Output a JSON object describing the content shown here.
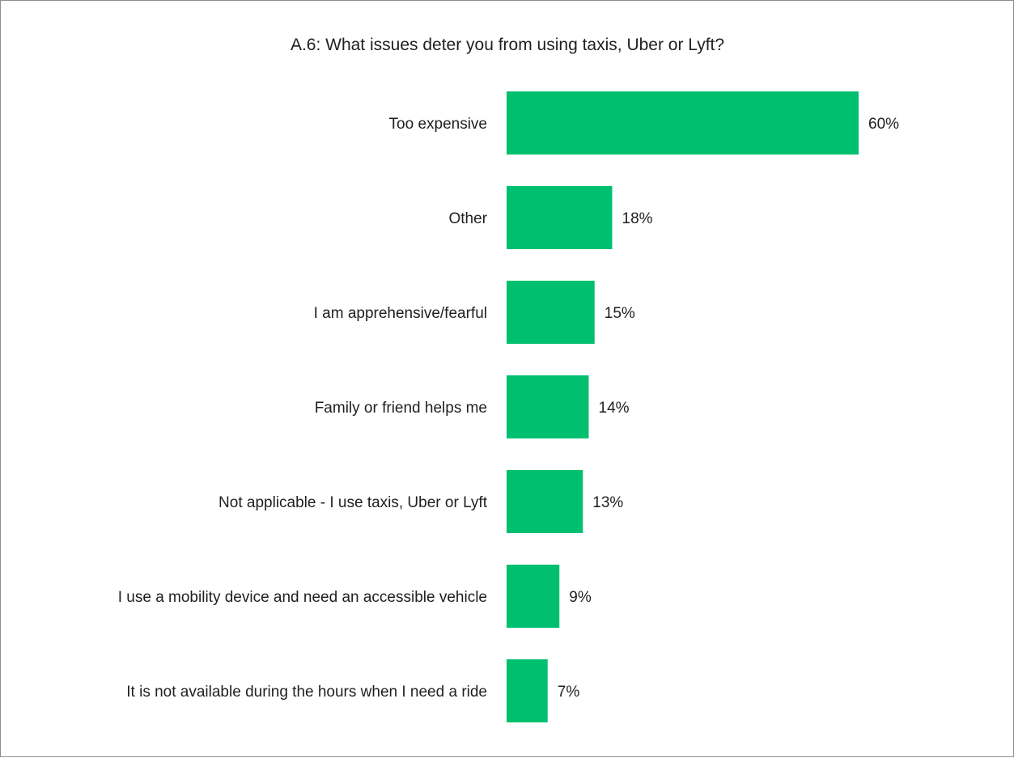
{
  "chart_data": {
    "type": "bar",
    "orientation": "horizontal",
    "title": "A.6: What issues deter you from using taxis, Uber or Lyft?",
    "categories": [
      "Too expensive",
      "Other",
      "I am apprehensive/fearful",
      "Family or friend helps me",
      "Not applicable - I use taxis, Uber or Lyft",
      "I use a mobility device and need an accessible vehicle",
      "It is not available during the hours when I need a ride"
    ],
    "values": [
      60,
      18,
      15,
      14,
      13,
      9,
      7
    ],
    "data_labels": [
      "60%",
      "18%",
      "15%",
      "14%",
      "13%",
      "9%",
      "7%"
    ],
    "value_unit": "%",
    "xlim": [
      0,
      100
    ],
    "xlabel": "",
    "ylabel": "",
    "grid": false,
    "legend": "none",
    "bar_color": "#00c070"
  }
}
